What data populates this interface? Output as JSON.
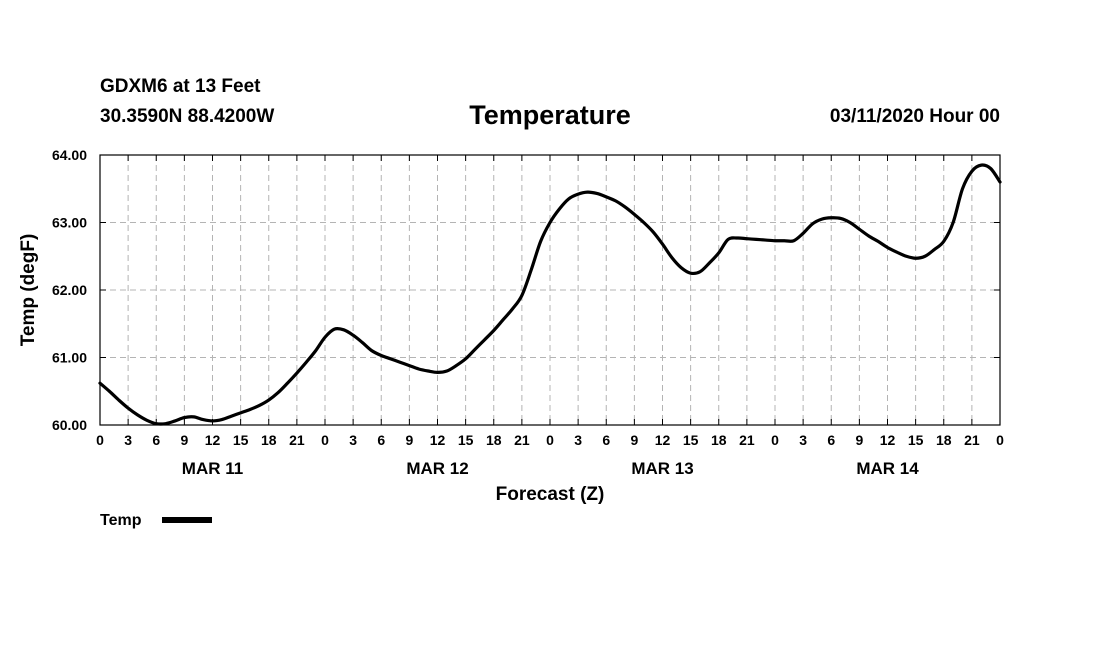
{
  "header": {
    "station": "GDXM6 at 13 Feet",
    "location": "30.3590N 88.4200W",
    "title": "Temperature",
    "run": "03/11/2020 Hour 00"
  },
  "chart_data": {
    "type": "line",
    "title": "Temperature",
    "xlabel": "Forecast (Z)",
    "ylabel": "Temp (degF)",
    "xlim": [
      0,
      96
    ],
    "ylim": [
      60.0,
      64.0
    ],
    "y_ticks": [
      "60.00",
      "61.00",
      "62.00",
      "63.00",
      "64.00"
    ],
    "y_tick_values": [
      60,
      61,
      62,
      63,
      64
    ],
    "x_tick_labels": [
      "0",
      "3",
      "6",
      "9",
      "12",
      "15",
      "18",
      "21",
      "0",
      "3",
      "6",
      "9",
      "12",
      "15",
      "18",
      "21",
      "0",
      "3",
      "6",
      "9",
      "12",
      "15",
      "18",
      "21",
      "0",
      "3",
      "6",
      "9",
      "12",
      "15",
      "18",
      "21",
      "0"
    ],
    "day_labels": [
      {
        "label": "MAR 11",
        "hour": 12
      },
      {
        "label": "MAR 12",
        "hour": 36
      },
      {
        "label": "MAR 13",
        "hour": 60
      },
      {
        "label": "MAR 14",
        "hour": 84
      }
    ],
    "grid": true,
    "legend": "bottom-left",
    "series": [
      {
        "name": "Temp",
        "color": "#000000",
        "x": [
          0,
          1,
          2,
          3,
          4,
          5,
          6,
          7,
          8,
          9,
          10,
          11,
          12,
          13,
          14,
          15,
          16,
          17,
          18,
          19,
          20,
          21,
          22,
          23,
          24,
          25,
          26,
          27,
          28,
          29,
          30,
          31,
          32,
          33,
          34,
          35,
          36,
          37,
          38,
          39,
          40,
          41,
          42,
          43,
          44,
          45,
          46,
          47,
          48,
          49,
          50,
          51,
          52,
          53,
          54,
          55,
          56,
          57,
          58,
          59,
          60,
          61,
          62,
          63,
          64,
          65,
          66,
          67,
          68,
          69,
          70,
          71,
          72,
          73,
          74,
          75,
          76,
          77,
          78,
          79,
          80,
          81,
          82,
          83,
          84,
          85,
          86,
          87,
          88,
          89,
          90,
          91,
          92,
          93,
          94,
          95,
          96
        ],
        "values": [
          60.62,
          60.5,
          60.37,
          60.25,
          60.15,
          60.07,
          60.02,
          60.02,
          60.06,
          60.11,
          60.12,
          60.08,
          60.06,
          60.08,
          60.13,
          60.18,
          60.23,
          60.29,
          60.37,
          60.48,
          60.62,
          60.77,
          60.93,
          61.1,
          61.3,
          61.42,
          61.41,
          61.33,
          61.22,
          61.1,
          61.03,
          60.98,
          60.93,
          60.88,
          60.83,
          60.8,
          60.78,
          60.8,
          60.88,
          60.98,
          61.12,
          61.26,
          61.4,
          61.56,
          61.72,
          61.92,
          62.3,
          62.72,
          63.0,
          63.2,
          63.35,
          63.42,
          63.45,
          63.43,
          63.38,
          63.32,
          63.23,
          63.12,
          63.0,
          62.86,
          62.68,
          62.48,
          62.33,
          62.25,
          62.27,
          62.4,
          62.55,
          62.75,
          62.77,
          62.76,
          62.75,
          62.74,
          62.73,
          62.73,
          62.73,
          62.84,
          62.98,
          63.05,
          63.07,
          63.06,
          63.0,
          62.9,
          62.8,
          62.72,
          62.63,
          62.56,
          62.5,
          62.47,
          62.5,
          62.6,
          62.72,
          63.0,
          63.5,
          63.76,
          63.85,
          63.8,
          63.6
        ]
      }
    ]
  }
}
